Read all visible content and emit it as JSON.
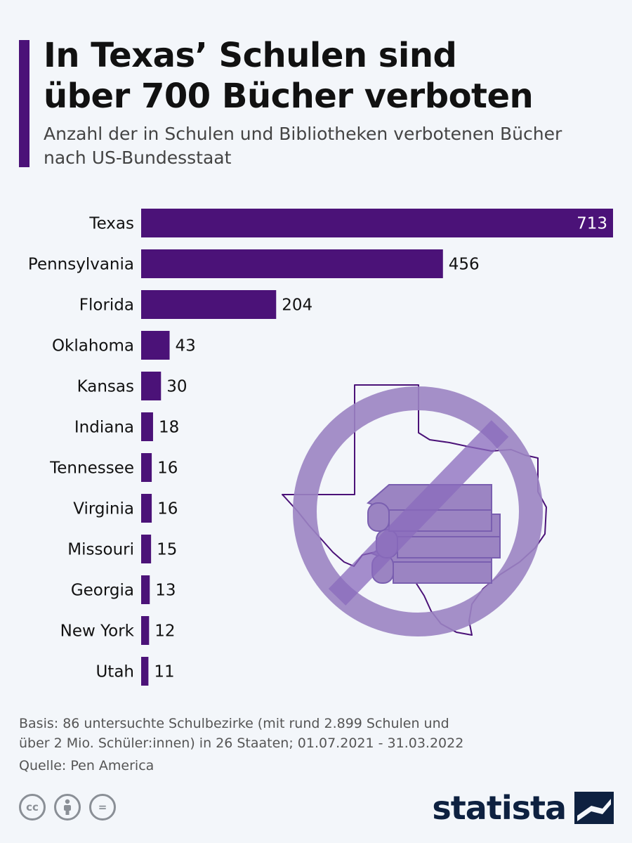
{
  "header": {
    "title_line1": "In Texas’ Schulen sind",
    "title_line2": "über 700 Bücher verboten",
    "subtitle_line1": "Anzahl der in Schulen und Bibliotheken verbotenen Bücher",
    "subtitle_line2": "nach US-Bundesstaat"
  },
  "chart_data": {
    "type": "bar",
    "orientation": "horizontal",
    "title": "In Texas’ Schulen sind über 700 Bücher verboten",
    "subtitle": "Anzahl der in Schulen und Bibliotheken verbotenen Bücher nach US-Bundesstaat",
    "categories": [
      "Texas",
      "Pennsylvania",
      "Florida",
      "Oklahoma",
      "Kansas",
      "Indiana",
      "Tennessee",
      "Virginia",
      "Missouri",
      "Georgia",
      "New York",
      "Utah"
    ],
    "values": [
      713,
      456,
      204,
      43,
      30,
      18,
      16,
      16,
      15,
      13,
      12,
      11
    ],
    "xlabel": "",
    "ylabel": "",
    "xlim": [
      0,
      713
    ],
    "grid": false,
    "bar_color": "#4b1278",
    "value_label_inside_first": true
  },
  "footer": {
    "basis_line1": "Basis: 86 untersuchte Schulbezirke (mit rund 2.899 Schulen und",
    "basis_line2": "über 2 Mio. Schüler:innen) in 26 Staaten; 01.07.2021 - 31.03.2022",
    "source": "Quelle: Pen America",
    "license_icons": [
      "cc-icon",
      "by-person-icon",
      "nd-equals-icon"
    ],
    "license_cc": "cc",
    "license_nd": "=",
    "brand": "statista"
  },
  "colors": {
    "accent": "#4b1278",
    "background": "#f3f6fa",
    "illustration": "#9b84c2",
    "brand": "#0e2140"
  }
}
